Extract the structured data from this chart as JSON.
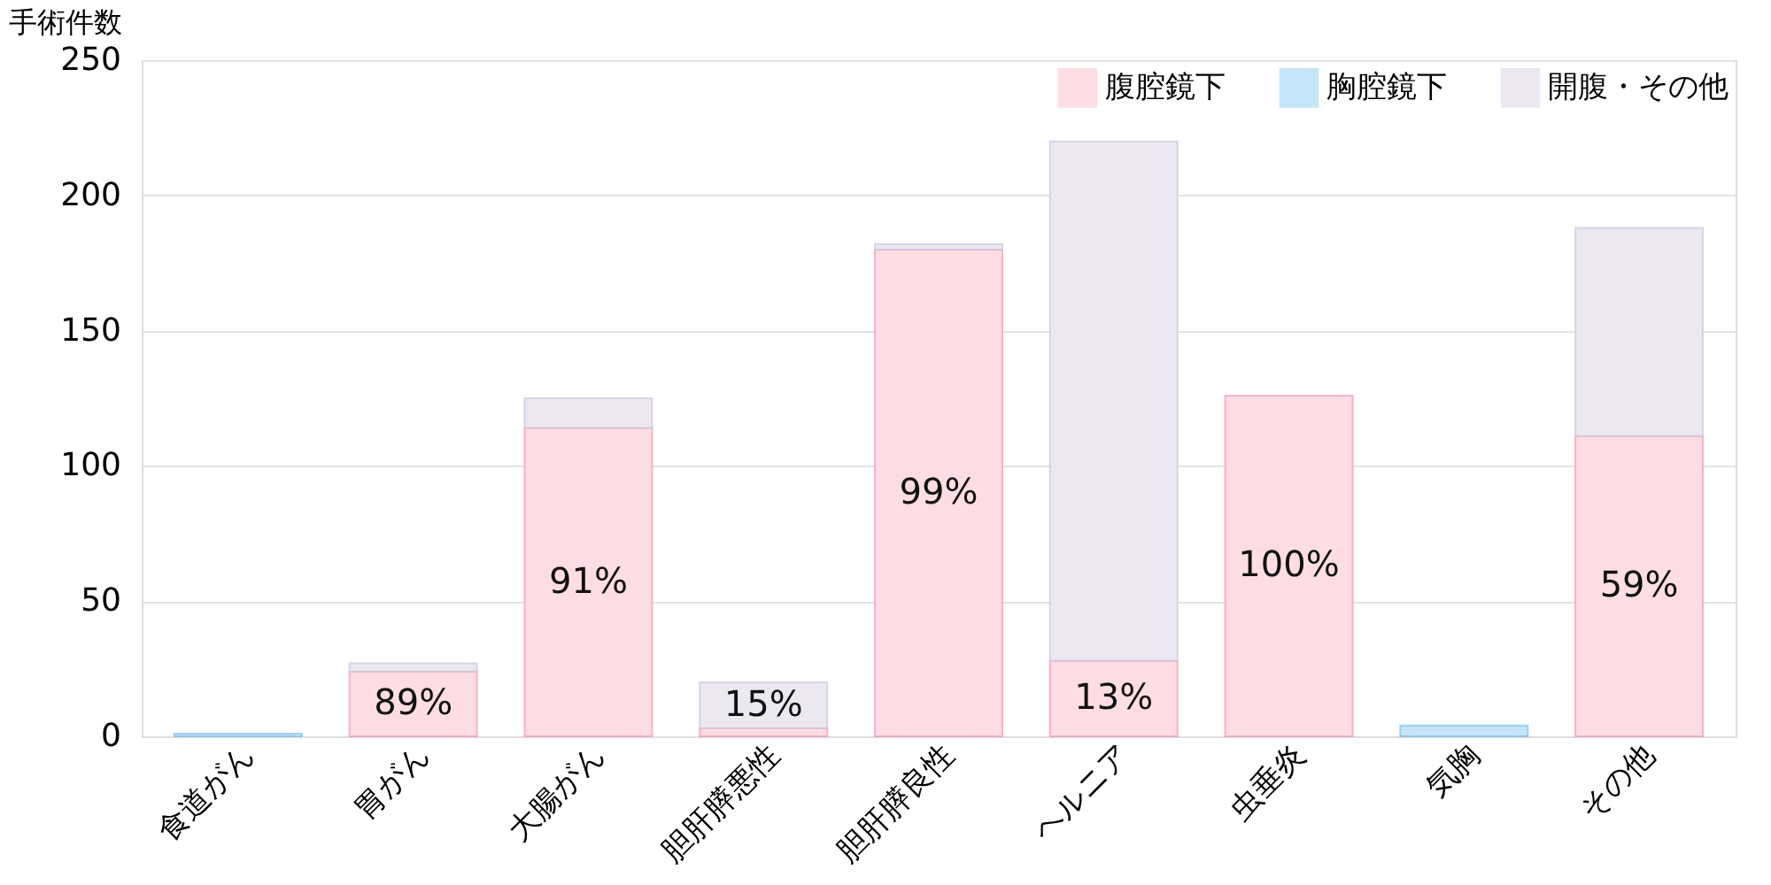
{
  "chart_data": {
    "type": "bar",
    "ylabel": "手術件数",
    "categories": [
      "食道がん",
      "胃がん",
      "大腸がん",
      "胆肝膵悪性",
      "胆肝膵良性",
      "ヘルニア",
      "虫垂炎",
      "気胸",
      "その他"
    ],
    "stacked": true,
    "series": [
      {
        "name": "腹腔鏡下",
        "color": "#ffdde4",
        "values": [
          null,
          24,
          114,
          3,
          180,
          28,
          126,
          null,
          111
        ]
      },
      {
        "name": "胸腔鏡下",
        "color": "#c6e5f8",
        "values": [
          1,
          null,
          null,
          null,
          null,
          null,
          null,
          4,
          null
        ]
      },
      {
        "name": "開腹・その他",
        "color": "#ece8f1",
        "values": [
          null,
          3,
          11,
          17,
          2,
          192,
          null,
          null,
          77
        ]
      }
    ],
    "annotations": [
      "89%",
      "91%",
      "15%",
      "99%",
      "13%",
      "100%",
      "59%"
    ],
    "ylim": [
      0,
      250
    ],
    "yticks": [
      0,
      50,
      100,
      150,
      200,
      250
    ],
    "grid": "y",
    "legend": "top right"
  }
}
